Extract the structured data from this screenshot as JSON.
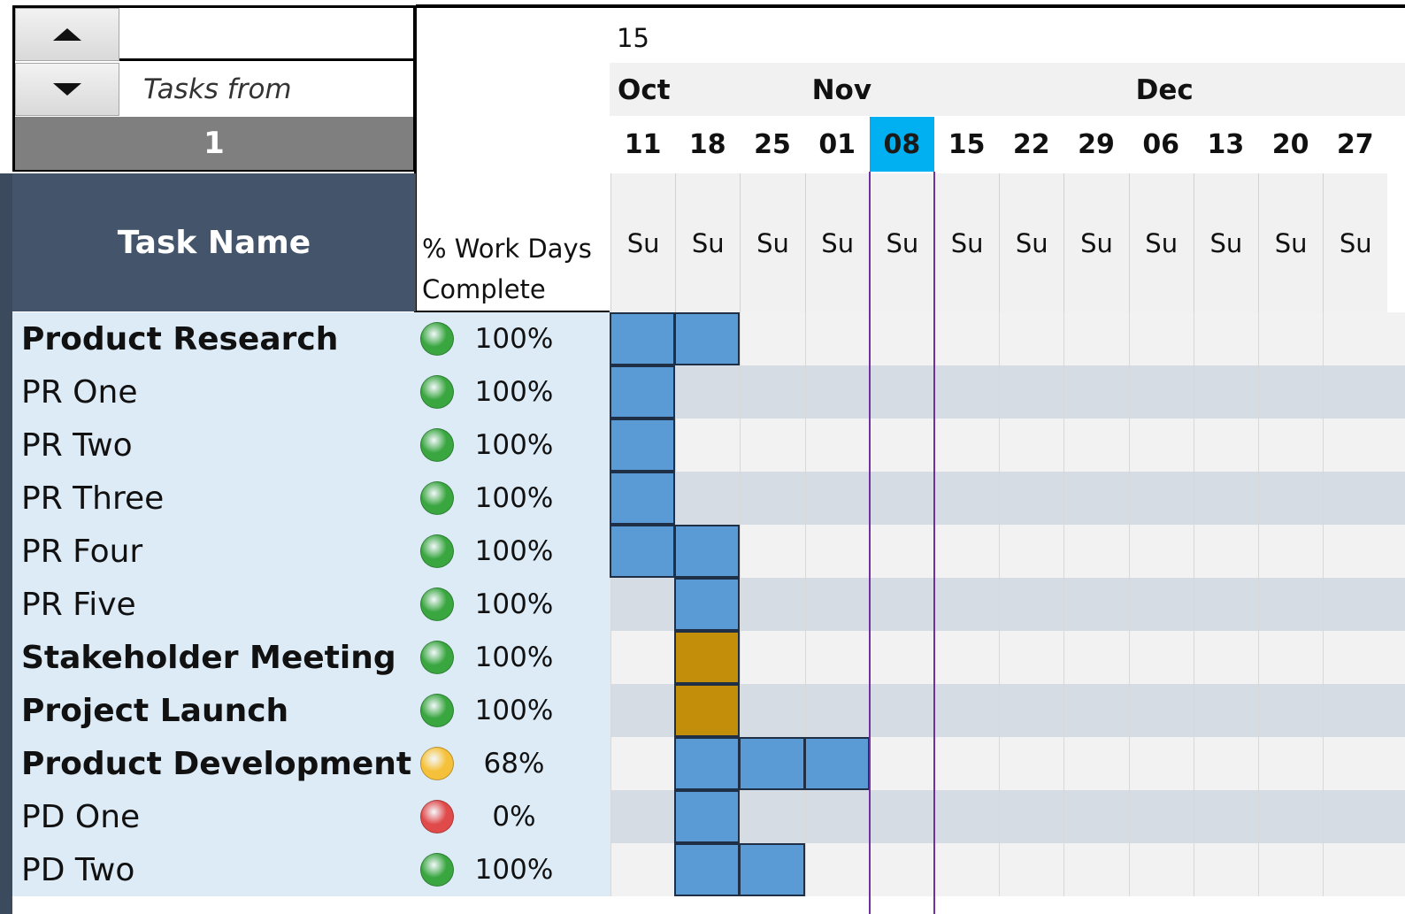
{
  "controls": {
    "scroll_up_icon": "triangle-up-icon",
    "scroll_down_icon": "triangle-down-icon",
    "tasks_from_label": "Tasks from",
    "tasks_from_value": "1",
    "top_value": "15"
  },
  "headers": {
    "task_name": "Task Name",
    "pct_line1": "% Work Days",
    "pct_line2": "Complete"
  },
  "timeline": {
    "months": [
      {
        "label": "Oct",
        "col": 0
      },
      {
        "label": "Nov",
        "col": 3
      },
      {
        "label": "Dec",
        "col": 8
      }
    ],
    "dates": [
      "11",
      "18",
      "25",
      "01",
      "08",
      "15",
      "22",
      "29",
      "06",
      "13",
      "20",
      "27"
    ],
    "day_label": "Su",
    "today_index": 4
  },
  "status_colors": {
    "green": "#3aa640",
    "yellow": "#f5c13a",
    "red": "#e04a4a"
  },
  "bar_colors": {
    "task": "#5b9bd5",
    "milestone": "#c38f0b"
  },
  "tasks": [
    {
      "name": "Product Research",
      "bold": true,
      "status": "green",
      "pct": "100%",
      "cols": [
        0,
        1
      ],
      "type": "task"
    },
    {
      "name": "PR One",
      "bold": false,
      "status": "green",
      "pct": "100%",
      "cols": [
        0
      ],
      "type": "task"
    },
    {
      "name": "PR Two",
      "bold": false,
      "status": "green",
      "pct": "100%",
      "cols": [
        0
      ],
      "type": "task"
    },
    {
      "name": "PR Three",
      "bold": false,
      "status": "green",
      "pct": "100%",
      "cols": [
        0
      ],
      "type": "task"
    },
    {
      "name": "PR Four",
      "bold": false,
      "status": "green",
      "pct": "100%",
      "cols": [
        0,
        1
      ],
      "type": "task"
    },
    {
      "name": "PR Five",
      "bold": false,
      "status": "green",
      "pct": "100%",
      "cols": [
        1
      ],
      "type": "task"
    },
    {
      "name": "Stakeholder Meeting",
      "bold": true,
      "status": "green",
      "pct": "100%",
      "cols": [
        1
      ],
      "type": "milestone"
    },
    {
      "name": "Project Launch",
      "bold": true,
      "status": "green",
      "pct": "100%",
      "cols": [
        1
      ],
      "type": "milestone"
    },
    {
      "name": "Product Development",
      "bold": true,
      "status": "yellow",
      "pct": "68%",
      "cols": [
        1,
        2,
        3
      ],
      "type": "task"
    },
    {
      "name": "PD One",
      "bold": false,
      "status": "red",
      "pct": "0%",
      "cols": [
        1
      ],
      "type": "task"
    },
    {
      "name": "PD Two",
      "bold": false,
      "status": "green",
      "pct": "100%",
      "cols": [
        1,
        2
      ],
      "type": "task"
    }
  ]
}
